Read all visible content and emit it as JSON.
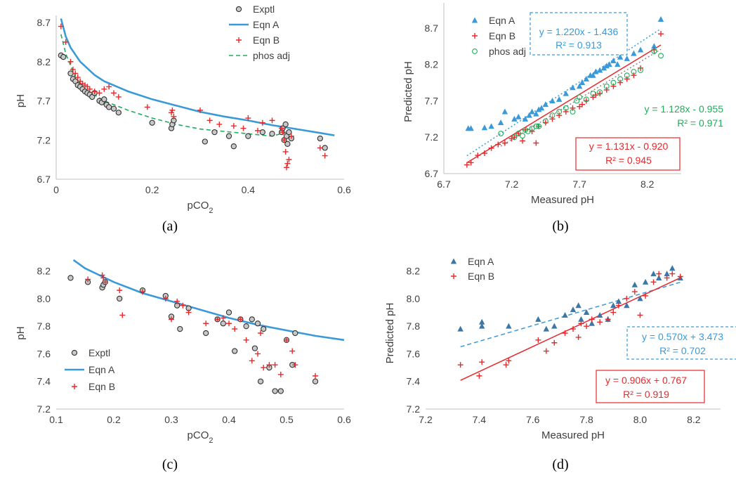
{
  "chart_data": [
    {
      "id": "a",
      "type": "scatter",
      "caption": "(a)",
      "xlabel": "pCO",
      "xlabel_sub": "2",
      "ylabel": "pH",
      "xlim": [
        0,
        0.6
      ],
      "ylim": [
        6.7,
        8.7
      ],
      "xticks": [
        "0",
        "0.2",
        "0.4",
        "0.6"
      ],
      "yticks": [
        "6.7",
        "7.2",
        "7.7",
        "8.2",
        "8.7"
      ],
      "legend": [
        "Exptl",
        "Eqn A",
        "Eqn B",
        "phos adj"
      ],
      "series": [
        {
          "name": "Exptl",
          "marker": "circle",
          "color": "#404040",
          "x": [
            0.01,
            0.015,
            0.03,
            0.035,
            0.04,
            0.045,
            0.05,
            0.055,
            0.06,
            0.065,
            0.07,
            0.075,
            0.08,
            0.09,
            0.095,
            0.1,
            0.105,
            0.11,
            0.12,
            0.13,
            0.2,
            0.24,
            0.242,
            0.245,
            0.31,
            0.33,
            0.36,
            0.37,
            0.4,
            0.43,
            0.45,
            0.47,
            0.472,
            0.475,
            0.478,
            0.48,
            0.482,
            0.485,
            0.49,
            0.55,
            0.56
          ],
          "y": [
            8.28,
            8.26,
            8.05,
            7.98,
            7.95,
            7.9,
            7.88,
            7.85,
            7.82,
            7.8,
            7.78,
            7.75,
            7.8,
            7.7,
            7.68,
            7.72,
            7.65,
            7.62,
            7.6,
            7.55,
            7.42,
            7.35,
            7.4,
            7.45,
            7.18,
            7.3,
            7.25,
            7.12,
            7.25,
            7.3,
            7.28,
            7.3,
            7.35,
            7.2,
            7.4,
            7.25,
            7.15,
            7.3,
            7.22,
            7.22,
            7.1
          ]
        },
        {
          "name": "Eqn B",
          "marker": "plus",
          "color": "#e8282b",
          "x": [
            0.01,
            0.02,
            0.03,
            0.035,
            0.04,
            0.045,
            0.05,
            0.055,
            0.06,
            0.065,
            0.07,
            0.08,
            0.09,
            0.1,
            0.11,
            0.12,
            0.13,
            0.19,
            0.24,
            0.242,
            0.245,
            0.3,
            0.32,
            0.34,
            0.37,
            0.39,
            0.4,
            0.42,
            0.43,
            0.45,
            0.47,
            0.472,
            0.475,
            0.478,
            0.48,
            0.482,
            0.485,
            0.49,
            0.55,
            0.56
          ],
          "y": [
            8.65,
            8.45,
            8.2,
            8.1,
            8.05,
            8.0,
            7.95,
            7.92,
            7.9,
            7.88,
            7.85,
            7.82,
            7.8,
            7.85,
            7.88,
            7.8,
            7.75,
            7.62,
            7.55,
            7.58,
            7.5,
            7.58,
            7.45,
            7.4,
            7.38,
            7.35,
            7.48,
            7.32,
            7.42,
            7.45,
            7.35,
            7.3,
            7.2,
            7.05,
            6.85,
            6.9,
            6.95,
            7.25,
            7.1,
            7.0
          ]
        },
        {
          "name": "Eqn A",
          "type": "line",
          "color": "#3a9ad9",
          "x": [
            0.01,
            0.02,
            0.03,
            0.05,
            0.08,
            0.1,
            0.15,
            0.2,
            0.25,
            0.3,
            0.35,
            0.4,
            0.45,
            0.5,
            0.55,
            0.58
          ],
          "y": [
            8.75,
            8.52,
            8.38,
            8.2,
            8.03,
            7.95,
            7.82,
            7.72,
            7.64,
            7.56,
            7.5,
            7.45,
            7.39,
            7.34,
            7.29,
            7.26
          ]
        },
        {
          "name": "phos adj",
          "type": "line",
          "dash": true,
          "color": "#1fae5a",
          "x": [
            0.01,
            0.02,
            0.04,
            0.06,
            0.1,
            0.15,
            0.2,
            0.25,
            0.3,
            0.35,
            0.4,
            0.45,
            0.48
          ],
          "y": [
            8.55,
            8.3,
            8.0,
            7.85,
            7.7,
            7.58,
            7.48,
            7.4,
            7.34,
            7.31,
            7.28,
            7.25,
            7.3
          ]
        }
      ]
    },
    {
      "id": "b",
      "type": "scatter",
      "caption": "(b)",
      "xlabel": "Measured pH",
      "ylabel": "Predicted pH",
      "xlim": [
        6.7,
        8.45
      ],
      "ylim": [
        6.7,
        8.95
      ],
      "xticks": [
        "6.7",
        "7.2",
        "7.7",
        "8.2"
      ],
      "yticks": [
        "6.7",
        "7.2",
        "7.7",
        "8.2",
        "8.7"
      ],
      "legend": [
        "Eqn A",
        "Eqn B",
        "phos adj"
      ],
      "annotations": [
        {
          "series": "Eqn A",
          "equation": "y = 1.220x - 1.436",
          "r2": "R² = 0.913",
          "boxed": "dashed"
        },
        {
          "series": "phos adj",
          "equation": "y = 1.128x - 0.955",
          "r2": "R² = 0.971",
          "boxed": "none"
        },
        {
          "series": "Eqn B",
          "equation": "y = 1.131x - 0.920",
          "r2": "R² = 0.945",
          "boxed": "solid"
        }
      ],
      "series": [
        {
          "name": "Eqn A",
          "marker": "triangle",
          "color": "#3a9ad9",
          "x": [
            6.88,
            6.9,
            7.0,
            7.05,
            7.12,
            7.15,
            7.22,
            7.25,
            7.3,
            7.33,
            7.35,
            7.38,
            7.4,
            7.42,
            7.45,
            7.5,
            7.55,
            7.6,
            7.65,
            7.7,
            7.72,
            7.75,
            7.78,
            7.8,
            7.82,
            7.85,
            7.88,
            7.9,
            7.92,
            7.95,
            7.98,
            8.0,
            8.05,
            8.1,
            8.15,
            8.25,
            8.3
          ],
          "y": [
            7.32,
            7.32,
            7.33,
            7.35,
            7.4,
            7.55,
            7.45,
            7.48,
            7.45,
            7.5,
            7.55,
            7.52,
            7.58,
            7.6,
            7.65,
            7.7,
            7.72,
            7.8,
            7.88,
            7.9,
            7.95,
            8.0,
            8.05,
            8.05,
            8.1,
            8.12,
            8.15,
            8.18,
            8.2,
            8.25,
            8.2,
            8.3,
            8.28,
            8.35,
            8.4,
            8.45,
            8.82
          ]
        },
        {
          "name": "Eqn B",
          "marker": "plus",
          "color": "#e8282b",
          "x": [
            6.87,
            6.9,
            6.95,
            7.0,
            7.05,
            7.1,
            7.15,
            7.2,
            7.22,
            7.25,
            7.28,
            7.3,
            7.35,
            7.38,
            7.4,
            7.45,
            7.5,
            7.55,
            7.6,
            7.65,
            7.7,
            7.72,
            7.75,
            7.8,
            7.82,
            7.85,
            7.9,
            7.95,
            8.0,
            8.05,
            8.1,
            8.15,
            8.25,
            8.3
          ],
          "y": [
            6.82,
            6.85,
            6.95,
            6.98,
            7.05,
            7.1,
            7.12,
            7.18,
            7.2,
            7.25,
            7.15,
            7.3,
            7.28,
            7.12,
            7.35,
            7.4,
            7.45,
            7.5,
            7.55,
            7.6,
            7.62,
            7.65,
            7.7,
            7.75,
            7.78,
            7.8,
            7.85,
            7.9,
            7.95,
            8.0,
            8.05,
            8.15,
            8.4,
            8.62
          ]
        },
        {
          "name": "phos adj",
          "marker": "ocircle",
          "color": "#1fae5a",
          "x": [
            7.12,
            7.22,
            7.25,
            7.28,
            7.3,
            7.32,
            7.35,
            7.38,
            7.4,
            7.45,
            7.5,
            7.55,
            7.6,
            7.65,
            7.68,
            7.7,
            7.75,
            7.8,
            7.85,
            7.9,
            7.95,
            8.0,
            8.05,
            8.1,
            8.15,
            8.25,
            8.3
          ],
          "y": [
            7.25,
            7.2,
            7.25,
            7.22,
            7.3,
            7.28,
            7.32,
            7.35,
            7.35,
            7.42,
            7.5,
            7.55,
            7.6,
            7.55,
            7.7,
            7.75,
            7.72,
            7.8,
            7.82,
            7.9,
            7.95,
            8.0,
            8.05,
            8.1,
            8.12,
            8.38,
            8.32
          ]
        }
      ],
      "trendlines": [
        {
          "series": "Eqn A",
          "slope": 1.22,
          "intercept": -1.436,
          "x": [
            6.87,
            8.3
          ],
          "color": "#3a9ad9",
          "style": "dotted"
        },
        {
          "series": "Eqn B",
          "slope": 1.131,
          "intercept": -0.92,
          "x": [
            6.87,
            8.3
          ],
          "color": "#e8282b",
          "style": "solid"
        },
        {
          "series": "phos adj",
          "slope": 1.128,
          "intercept": -0.955,
          "x": [
            7.12,
            8.3
          ],
          "color": "#8a8a8a",
          "style": "dotted"
        }
      ]
    },
    {
      "id": "c",
      "type": "scatter",
      "caption": "(c)",
      "xlabel": "pCO",
      "xlabel_sub": "2",
      "ylabel": "pH",
      "xlim": [
        0.1,
        0.6
      ],
      "ylim": [
        7.2,
        8.3
      ],
      "xticks": [
        "0.1",
        "0.2",
        "0.3",
        "0.4",
        "0.5",
        "0.6"
      ],
      "yticks": [
        "7.2",
        "7.4",
        "7.6",
        "7.8",
        "8.0",
        "8.2"
      ],
      "legend": [
        "Exptl",
        "Eqn A",
        "Eqn B"
      ],
      "series": [
        {
          "name": "Exptl",
          "marker": "circle",
          "color": "#404040",
          "x": [
            0.125,
            0.155,
            0.18,
            0.182,
            0.185,
            0.21,
            0.25,
            0.29,
            0.3,
            0.31,
            0.315,
            0.33,
            0.36,
            0.38,
            0.39,
            0.4,
            0.41,
            0.42,
            0.43,
            0.44,
            0.445,
            0.45,
            0.455,
            0.46,
            0.47,
            0.48,
            0.49,
            0.5,
            0.51,
            0.515,
            0.55
          ],
          "y": [
            8.15,
            8.12,
            8.08,
            8.1,
            8.12,
            8.0,
            8.06,
            8.02,
            7.87,
            7.95,
            7.78,
            7.93,
            7.75,
            7.85,
            7.82,
            7.9,
            7.62,
            7.85,
            7.8,
            7.85,
            7.64,
            7.82,
            7.4,
            7.78,
            7.5,
            7.33,
            7.33,
            7.7,
            7.52,
            7.75,
            7.4
          ]
        },
        {
          "name": "Eqn B",
          "marker": "plus",
          "color": "#e8282b",
          "x": [
            0.155,
            0.18,
            0.182,
            0.185,
            0.21,
            0.215,
            0.25,
            0.29,
            0.3,
            0.31,
            0.32,
            0.33,
            0.36,
            0.38,
            0.39,
            0.4,
            0.41,
            0.42,
            0.43,
            0.44,
            0.45,
            0.455,
            0.46,
            0.47,
            0.48,
            0.49,
            0.5,
            0.51,
            0.515,
            0.55
          ],
          "y": [
            8.14,
            8.17,
            8.15,
            8.12,
            8.06,
            7.88,
            8.05,
            8.0,
            7.85,
            7.98,
            7.95,
            7.9,
            7.82,
            7.85,
            7.86,
            7.82,
            7.78,
            7.85,
            7.7,
            7.55,
            7.6,
            7.75,
            7.5,
            7.52,
            7.52,
            7.45,
            7.7,
            7.62,
            7.52,
            7.44
          ]
        },
        {
          "name": "Eqn A",
          "type": "line",
          "color": "#3a9ad9",
          "x": [
            0.13,
            0.15,
            0.18,
            0.2,
            0.25,
            0.3,
            0.35,
            0.4,
            0.45,
            0.5,
            0.55,
            0.6
          ],
          "y": [
            8.28,
            8.22,
            8.16,
            8.12,
            8.04,
            7.98,
            7.92,
            7.86,
            7.81,
            7.77,
            7.73,
            7.7
          ]
        }
      ]
    },
    {
      "id": "d",
      "type": "scatter",
      "caption": "(d)",
      "xlabel": "Measured pH",
      "ylabel": "Predicted pH",
      "xlim": [
        7.2,
        8.3
      ],
      "ylim": [
        7.2,
        8.3
      ],
      "xticks": [
        "7.2",
        "7.4",
        "7.6",
        "7.8",
        "8.0",
        "8.2"
      ],
      "yticks": [
        "7.2",
        "7.4",
        "7.6",
        "7.8",
        "8.0",
        "8.2"
      ],
      "legend": [
        "Eqn A",
        "Eqn B"
      ],
      "annotations": [
        {
          "series": "Eqn A",
          "equation": "y = 0.570x + 3.473",
          "r2": "R² = 0.702",
          "boxed": "dashed"
        },
        {
          "series": "Eqn B",
          "equation": "y = 0.906x + 0.767",
          "r2": "R² = 0.919",
          "boxed": "solid"
        }
      ],
      "series": [
        {
          "name": "Eqn A",
          "marker": "triangle",
          "color": "#3b78a8",
          "x": [
            7.33,
            7.41,
            7.41,
            7.51,
            7.62,
            7.65,
            7.68,
            7.72,
            7.75,
            7.77,
            7.78,
            7.8,
            7.82,
            7.85,
            7.88,
            7.9,
            7.92,
            7.95,
            7.98,
            8.0,
            8.02,
            8.05,
            8.07,
            8.1,
            8.12,
            8.15
          ],
          "y": [
            7.78,
            7.8,
            7.83,
            7.8,
            7.85,
            7.78,
            7.8,
            7.88,
            7.92,
            7.95,
            7.85,
            7.9,
            7.82,
            7.88,
            7.85,
            7.95,
            7.98,
            7.95,
            8.1,
            8.0,
            8.12,
            8.18,
            8.15,
            8.18,
            8.22,
            8.15
          ]
        },
        {
          "name": "Eqn B",
          "marker": "plus",
          "color": "#e8282b",
          "x": [
            7.33,
            7.4,
            7.41,
            7.5,
            7.51,
            7.62,
            7.65,
            7.68,
            7.72,
            7.75,
            7.77,
            7.78,
            7.8,
            7.82,
            7.85,
            7.88,
            7.9,
            7.92,
            7.95,
            7.98,
            8.0,
            8.02,
            8.05,
            8.07,
            8.1,
            8.12,
            8.15
          ],
          "y": [
            7.52,
            7.44,
            7.54,
            7.52,
            7.55,
            7.7,
            7.62,
            7.68,
            7.75,
            7.78,
            7.72,
            7.82,
            7.8,
            7.85,
            7.83,
            7.85,
            7.9,
            7.95,
            8.0,
            8.05,
            7.88,
            8.02,
            8.12,
            8.18,
            8.15,
            8.18,
            8.16
          ]
        }
      ],
      "trendlines": [
        {
          "series": "Eqn A",
          "slope": 0.57,
          "intercept": 3.473,
          "x": [
            7.33,
            8.15
          ],
          "color": "#3a9ad9",
          "style": "dashed"
        },
        {
          "series": "Eqn B",
          "slope": 0.906,
          "intercept": 0.767,
          "x": [
            7.33,
            8.15
          ],
          "color": "#e8282b",
          "style": "solid"
        }
      ]
    }
  ]
}
